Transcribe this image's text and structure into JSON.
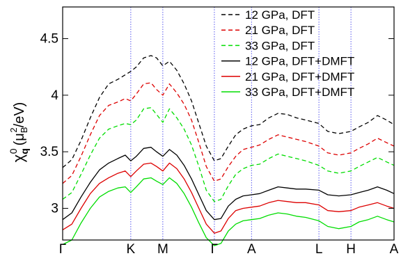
{
  "chart_data": {
    "type": "line",
    "xlabel": "",
    "ylabel": "χ",
    "ylabel_parts": {
      "symbol": "χ",
      "superscript": "0",
      "subscript": "q",
      "unit_open": "(μ",
      "unit_sub": "B",
      "unit_sup": "2",
      "unit_close": "/eV)"
    },
    "ylim": [
      2.72,
      4.78
    ],
    "yticks": [
      3.0,
      3.5,
      4.0,
      4.5
    ],
    "ytick_labels": [
      "3",
      "3.5",
      "4",
      "4.5"
    ],
    "xlim": [
      0,
      9
    ],
    "xticks": [
      {
        "x": 0,
        "label": "Γ"
      },
      {
        "x": 1.85,
        "label": "K"
      },
      {
        "x": 2.72,
        "label": "M"
      },
      {
        "x": 4.12,
        "label": "Γ"
      },
      {
        "x": 5.13,
        "label": "A"
      },
      {
        "x": 6.96,
        "label": "L"
      },
      {
        "x": 7.83,
        "label": "H"
      },
      {
        "x": 9,
        "label": "A"
      }
    ],
    "vlines": [
      1.85,
      2.72,
      4.12,
      5.13,
      6.96,
      7.83
    ],
    "grid": false,
    "legend_position": "top-right",
    "x": [
      0,
      0.25,
      0.5,
      0.75,
      1.0,
      1.25,
      1.5,
      1.7,
      1.85,
      2.0,
      2.2,
      2.4,
      2.55,
      2.72,
      2.9,
      3.1,
      3.3,
      3.5,
      3.7,
      3.9,
      4.12,
      4.3,
      4.5,
      4.7,
      4.9,
      5.13,
      5.35,
      5.6,
      5.85,
      6.1,
      6.35,
      6.6,
      6.96,
      7.2,
      7.5,
      7.83,
      8.05,
      8.3,
      8.55,
      8.8,
      9.0
    ],
    "series": [
      {
        "name": "12 GPa, DFT",
        "color": "#000000",
        "dash": true,
        "values": [
          3.36,
          3.43,
          3.6,
          3.8,
          3.98,
          4.1,
          4.14,
          4.18,
          4.21,
          4.25,
          4.33,
          4.35,
          4.33,
          4.26,
          4.3,
          4.22,
          4.1,
          3.95,
          3.75,
          3.55,
          3.42,
          3.44,
          3.55,
          3.65,
          3.7,
          3.73,
          3.74,
          3.8,
          3.84,
          3.83,
          3.8,
          3.78,
          3.75,
          3.68,
          3.66,
          3.68,
          3.72,
          3.76,
          3.82,
          3.78,
          3.74
        ]
      },
      {
        "name": "21 GPa, DFT",
        "color": "#dd0000",
        "dash": true,
        "values": [
          3.22,
          3.29,
          3.46,
          3.65,
          3.82,
          3.91,
          3.94,
          3.97,
          3.95,
          4.01,
          4.1,
          4.11,
          4.05,
          4.0,
          4.1,
          4.02,
          3.92,
          3.78,
          3.58,
          3.37,
          3.24,
          3.26,
          3.37,
          3.46,
          3.52,
          3.54,
          3.56,
          3.61,
          3.65,
          3.63,
          3.61,
          3.59,
          3.55,
          3.49,
          3.47,
          3.49,
          3.53,
          3.57,
          3.62,
          3.58,
          3.55
        ]
      },
      {
        "name": "33 GPa, DFT",
        "color": "#00dd00",
        "dash": true,
        "values": [
          3.08,
          3.14,
          3.3,
          3.47,
          3.62,
          3.7,
          3.73,
          3.75,
          3.74,
          3.78,
          3.88,
          3.89,
          3.83,
          3.76,
          3.88,
          3.8,
          3.7,
          3.56,
          3.37,
          3.16,
          3.06,
          3.08,
          3.2,
          3.3,
          3.35,
          3.38,
          3.39,
          3.44,
          3.48,
          3.46,
          3.44,
          3.42,
          3.38,
          3.33,
          3.31,
          3.33,
          3.37,
          3.41,
          3.45,
          3.41,
          3.38
        ]
      },
      {
        "name": "12 GPa, DFT+DMFT",
        "color": "#000000",
        "dash": false,
        "values": [
          2.9,
          2.96,
          3.1,
          3.23,
          3.34,
          3.4,
          3.44,
          3.47,
          3.42,
          3.46,
          3.53,
          3.54,
          3.5,
          3.46,
          3.52,
          3.47,
          3.38,
          3.26,
          3.12,
          2.98,
          2.9,
          2.91,
          3.02,
          3.08,
          3.11,
          3.12,
          3.13,
          3.16,
          3.19,
          3.18,
          3.17,
          3.17,
          3.16,
          3.12,
          3.11,
          3.12,
          3.14,
          3.16,
          3.19,
          3.16,
          3.13
        ]
      },
      {
        "name": "21 GPa, DFT+DMFT",
        "color": "#dd0000",
        "dash": false,
        "values": [
          2.81,
          2.86,
          3.0,
          3.13,
          3.22,
          3.27,
          3.31,
          3.33,
          3.28,
          3.33,
          3.39,
          3.4,
          3.37,
          3.33,
          3.4,
          3.35,
          3.26,
          3.14,
          3.0,
          2.86,
          2.78,
          2.8,
          2.91,
          2.98,
          3.0,
          3.01,
          3.02,
          3.05,
          3.07,
          3.06,
          3.05,
          3.05,
          3.03,
          2.98,
          2.97,
          2.98,
          3.01,
          3.03,
          3.05,
          3.02,
          3.0
        ]
      },
      {
        "name": "33 GPa, DFT+DMFT",
        "color": "#00dd00",
        "dash": false,
        "values": [
          2.68,
          2.72,
          2.87,
          3.0,
          3.1,
          3.15,
          3.18,
          3.19,
          3.14,
          3.19,
          3.26,
          3.27,
          3.24,
          3.21,
          3.27,
          3.22,
          3.13,
          3.01,
          2.87,
          2.74,
          2.67,
          2.69,
          2.8,
          2.86,
          2.89,
          2.9,
          2.91,
          2.94,
          2.96,
          2.95,
          2.93,
          2.92,
          2.89,
          2.84,
          2.82,
          2.84,
          2.88,
          2.9,
          2.93,
          2.9,
          2.88
        ]
      }
    ]
  }
}
